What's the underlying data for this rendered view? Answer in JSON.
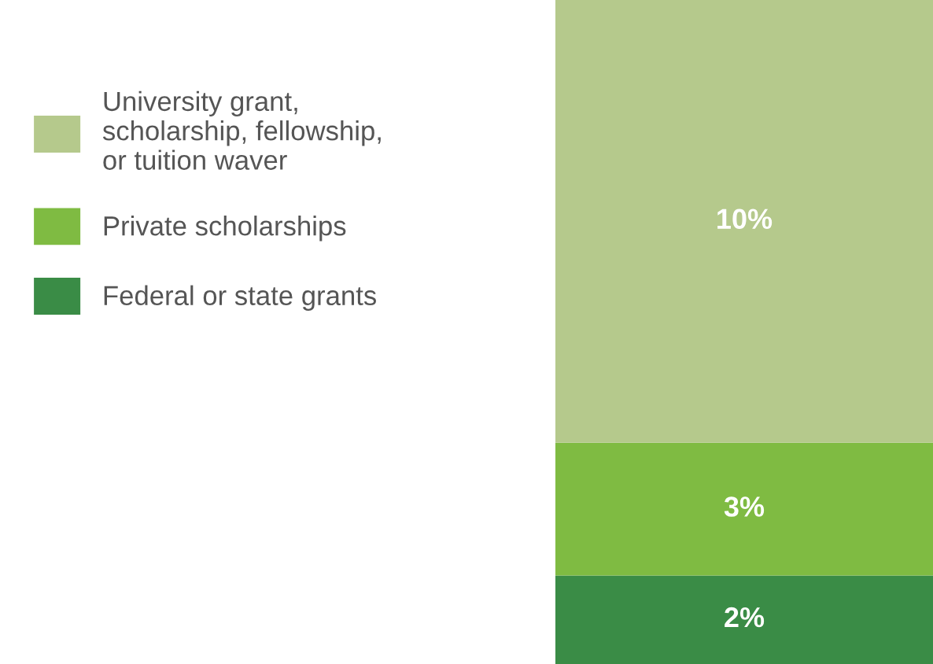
{
  "chart_data": {
    "type": "bar",
    "stacked": true,
    "categories": [
      null
    ],
    "legend": "left",
    "tick_labels": false,
    "series": [
      {
        "name": "Federal or state grants",
        "color": "#3a8c46",
        "values": [
          2
        ],
        "value_labels": [
          "2%"
        ]
      },
      {
        "name": "Private scholarships",
        "color": "#7fbb42",
        "values": [
          3
        ],
        "value_labels": [
          "3%"
        ]
      },
      {
        "name": "University grant, scholarship, fellowship, or tuition waver",
        "color": "#b5c98c",
        "values": [
          10
        ],
        "value_labels": [
          "10%"
        ]
      }
    ]
  }
}
